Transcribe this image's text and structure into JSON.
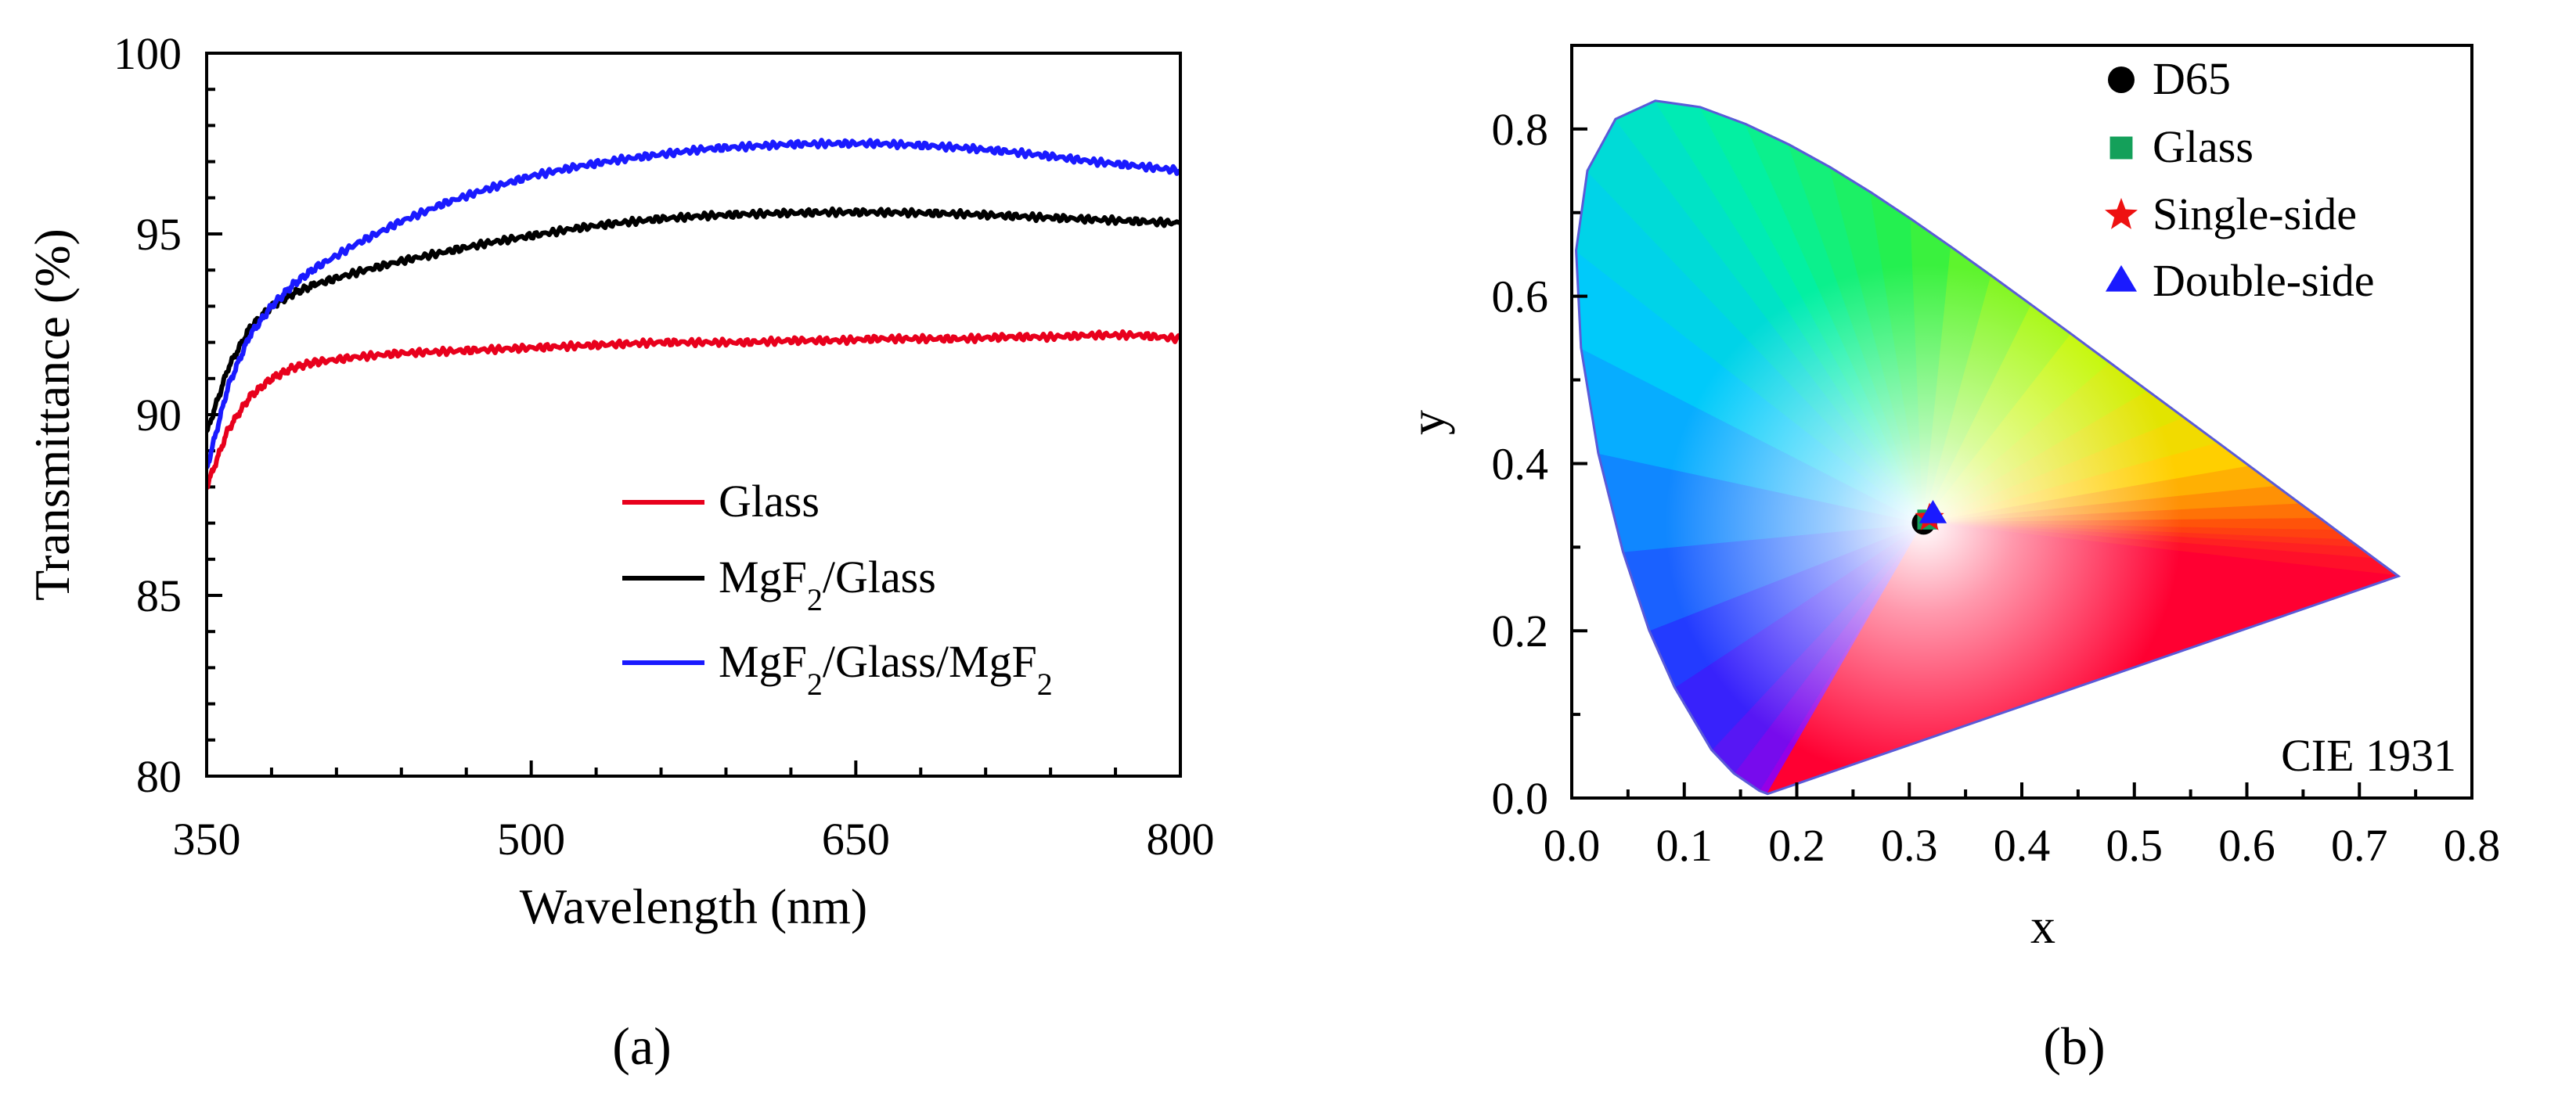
{
  "chart_data": [
    {
      "type": "line",
      "panel": "a",
      "xlabel": "Wavelength (nm)",
      "ylabel": "Transmittance (%)",
      "xlim": [
        350,
        800
      ],
      "ylim": [
        80,
        100
      ],
      "xticks": [
        350,
        500,
        650,
        800
      ],
      "yticks": [
        80,
        85,
        90,
        95,
        100
      ],
      "legend_position": "center-right",
      "series": [
        {
          "name": "Glass",
          "label_parts": [
            "Glass"
          ],
          "color": "#e8001c",
          "x": [
            350,
            360,
            370,
            380,
            390,
            400,
            420,
            440,
            460,
            480,
            500,
            520,
            540,
            560,
            580,
            600,
            620,
            640,
            660,
            680,
            700,
            720,
            740,
            760,
            780,
            800
          ],
          "y": [
            88.0,
            89.6,
            90.5,
            91.0,
            91.3,
            91.45,
            91.6,
            91.7,
            91.75,
            91.8,
            91.85,
            91.9,
            91.95,
            92.0,
            92.0,
            92.0,
            92.05,
            92.05,
            92.1,
            92.1,
            92.1,
            92.15,
            92.15,
            92.2,
            92.2,
            92.1
          ]
        },
        {
          "name": "MgF2/Glass",
          "label_parts": [
            "MgF",
            "2",
            "/Glass"
          ],
          "color": "#000000",
          "x": [
            350,
            360,
            370,
            380,
            390,
            400,
            420,
            440,
            460,
            480,
            500,
            520,
            540,
            560,
            580,
            600,
            620,
            640,
            660,
            680,
            700,
            720,
            740,
            760,
            780,
            800
          ],
          "y": [
            89.5,
            91.3,
            92.4,
            93.0,
            93.35,
            93.6,
            93.95,
            94.25,
            94.5,
            94.75,
            94.95,
            95.15,
            95.3,
            95.42,
            95.5,
            95.55,
            95.58,
            95.6,
            95.6,
            95.58,
            95.55,
            95.5,
            95.45,
            95.4,
            95.35,
            95.3
          ]
        },
        {
          "name": "MgF2/Glass/MgF2",
          "label_parts": [
            "MgF",
            "2",
            "/Glass/MgF",
            "2"
          ],
          "color": "#1a1aff",
          "x": [
            350,
            360,
            370,
            380,
            390,
            400,
            420,
            440,
            460,
            480,
            500,
            520,
            540,
            560,
            580,
            600,
            620,
            640,
            660,
            680,
            700,
            720,
            740,
            760,
            780,
            800
          ],
          "y": [
            88.5,
            90.8,
            92.2,
            93.0,
            93.6,
            94.05,
            94.75,
            95.35,
            95.85,
            96.25,
            96.6,
            96.85,
            97.05,
            97.2,
            97.35,
            97.42,
            97.48,
            97.5,
            97.5,
            97.45,
            97.38,
            97.28,
            97.15,
            97.0,
            96.88,
            96.75
          ]
        }
      ],
      "subfigure_label": "(a)"
    },
    {
      "type": "scatter",
      "panel": "b",
      "title": "CIE 1931",
      "xlabel": "x",
      "ylabel": "y",
      "xlim": [
        0,
        0.8
      ],
      "ylim": [
        0,
        0.9
      ],
      "xticks": [
        "0.0",
        "0.1",
        "0.2",
        "0.3",
        "0.4",
        "0.5",
        "0.6",
        "0.7",
        "0.8"
      ],
      "yticks": [
        "0.0",
        "0.2",
        "0.4",
        "0.6",
        "0.8"
      ],
      "legend_position": "top-right",
      "spectral_locus": [
        [
          0.1741,
          0.005
        ],
        [
          0.1666,
          0.0089
        ],
        [
          0.144,
          0.0297
        ],
        [
          0.1241,
          0.0578
        ],
        [
          0.0913,
          0.1327
        ],
        [
          0.0687,
          0.2007
        ],
        [
          0.0454,
          0.295
        ],
        [
          0.0235,
          0.4127
        ],
        [
          0.0082,
          0.5384
        ],
        [
          0.0039,
          0.6548
        ],
        [
          0.0139,
          0.7502
        ],
        [
          0.0389,
          0.812
        ],
        [
          0.0743,
          0.8338
        ],
        [
          0.1142,
          0.8262
        ],
        [
          0.1547,
          0.8059
        ],
        [
          0.1929,
          0.7816
        ],
        [
          0.2296,
          0.7543
        ],
        [
          0.2658,
          0.7243
        ],
        [
          0.3016,
          0.6923
        ],
        [
          0.3373,
          0.6589
        ],
        [
          0.3731,
          0.6245
        ],
        [
          0.4087,
          0.5896
        ],
        [
          0.4441,
          0.5547
        ],
        [
          0.4788,
          0.5202
        ],
        [
          0.5125,
          0.4866
        ],
        [
          0.5448,
          0.4544
        ],
        [
          0.5752,
          0.4242
        ],
        [
          0.6029,
          0.3965
        ],
        [
          0.627,
          0.3725
        ],
        [
          0.6482,
          0.3514
        ],
        [
          0.6658,
          0.334
        ],
        [
          0.6801,
          0.3197
        ],
        [
          0.6915,
          0.3083
        ],
        [
          0.7006,
          0.2993
        ],
        [
          0.714,
          0.2859
        ],
        [
          0.7347,
          0.2653
        ]
      ],
      "series": [
        {
          "name": "D65",
          "marker": "circle",
          "color": "#000000",
          "x": 0.3127,
          "y": 0.329
        },
        {
          "name": "Glass",
          "marker": "square",
          "color": "#14a05a",
          "x": 0.316,
          "y": 0.333
        },
        {
          "name": "Single-side",
          "marker": "star",
          "color": "#ee1111",
          "x": 0.318,
          "y": 0.335
        },
        {
          "name": "Double-side",
          "marker": "triangle",
          "color": "#1a1aff",
          "x": 0.321,
          "y": 0.339
        }
      ],
      "subfigure_label": "(b)"
    }
  ]
}
